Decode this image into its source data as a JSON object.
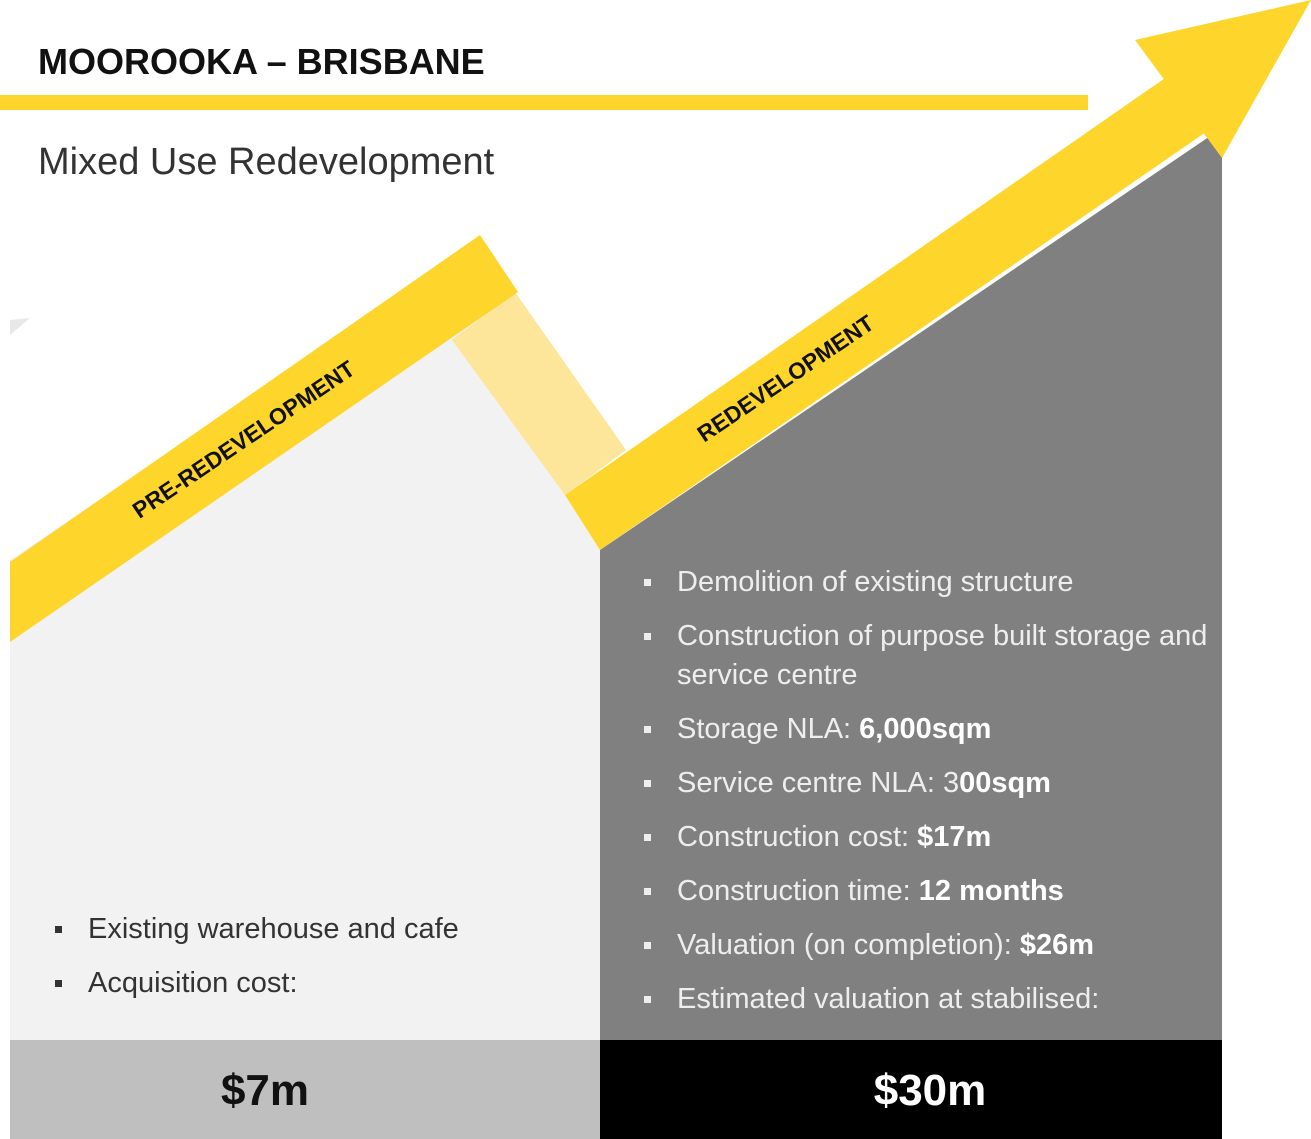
{
  "header": {
    "title": "MOOROOKA – BRISBANE",
    "subtitle": "Mixed Use Redevelopment"
  },
  "stages": [
    {
      "label": "PRE-REDEVELOPMENT",
      "bullets": [
        {
          "text": "Existing warehouse and cafe"
        },
        {
          "text": "Acquisition cost:"
        }
      ],
      "value": "$7m"
    },
    {
      "label": "REDEVELOPMENT",
      "bullets": [
        {
          "text": "Demolition of existing structure"
        },
        {
          "text": "Construction of purpose built storage and service centre"
        },
        {
          "text": "Storage NLA: ",
          "bold": "6,000sqm"
        },
        {
          "text": "Service centre NLA: 3",
          "bold": "00sqm"
        },
        {
          "text": "Construction cost: ",
          "bold": "$17m"
        },
        {
          "text": "Construction time: ",
          "bold": "12 months"
        },
        {
          "text": "Valuation (on completion): ",
          "bold": "$26m"
        },
        {
          "text": "Estimated valuation at stabilised:"
        }
      ],
      "value": "$30m"
    }
  ]
}
